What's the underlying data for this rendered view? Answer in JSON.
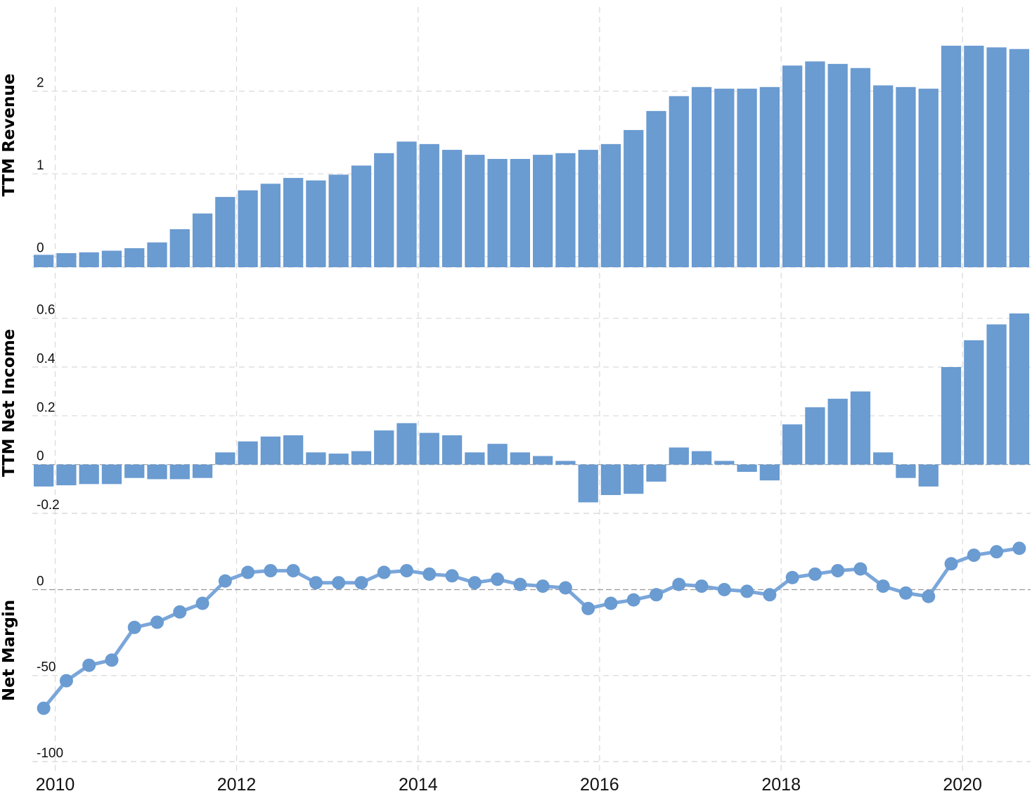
{
  "chart_data": [
    {
      "type": "bar",
      "ylabel": "TTM Revenue",
      "yticks": [
        0,
        1,
        2
      ],
      "ylim": [
        -0.13,
        2.95
      ],
      "grid": true,
      "x": [
        "2009-10",
        "2010-01",
        "2010-04",
        "2010-07",
        "2010-10",
        "2011-01",
        "2011-04",
        "2011-07",
        "2011-10",
        "2012-01",
        "2012-04",
        "2012-07",
        "2012-10",
        "2013-01",
        "2013-04",
        "2013-07",
        "2013-10",
        "2014-01",
        "2014-04",
        "2014-07",
        "2014-10",
        "2015-01",
        "2015-04",
        "2015-07",
        "2015-10",
        "2016-01",
        "2016-04",
        "2016-07",
        "2016-10",
        "2017-01",
        "2017-04",
        "2017-07",
        "2017-10",
        "2018-01",
        "2018-04",
        "2018-07",
        "2018-10",
        "2019-01",
        "2019-04",
        "2019-07",
        "2019-10",
        "2020-01",
        "2020-04",
        "2020-07"
      ],
      "values": [
        0.02,
        0.04,
        0.05,
        0.07,
        0.1,
        0.17,
        0.33,
        0.52,
        0.72,
        0.8,
        0.88,
        0.95,
        0.92,
        0.99,
        1.1,
        1.25,
        1.39,
        1.36,
        1.29,
        1.23,
        1.18,
        1.18,
        1.23,
        1.25,
        1.29,
        1.36,
        1.53,
        1.76,
        1.94,
        2.05,
        2.03,
        2.03,
        2.05,
        2.31,
        2.36,
        2.33,
        2.28,
        2.07,
        2.05,
        2.03,
        2.55,
        2.55,
        2.53,
        2.51
      ]
    },
    {
      "type": "bar",
      "ylabel": "TTM Net Income",
      "yticks": [
        0.6,
        0.4,
        0.2,
        0.0,
        -0.2
      ],
      "ylim": [
        -0.2,
        0.7
      ],
      "grid": true,
      "x": [
        "2009-10",
        "2010-01",
        "2010-04",
        "2010-07",
        "2010-10",
        "2011-01",
        "2011-04",
        "2011-07",
        "2011-10",
        "2012-01",
        "2012-04",
        "2012-07",
        "2012-10",
        "2013-01",
        "2013-04",
        "2013-07",
        "2013-10",
        "2014-01",
        "2014-04",
        "2014-07",
        "2014-10",
        "2015-01",
        "2015-04",
        "2015-07",
        "2015-10",
        "2016-01",
        "2016-04",
        "2016-07",
        "2016-10",
        "2017-01",
        "2017-04",
        "2017-07",
        "2017-10",
        "2018-01",
        "2018-04",
        "2018-07",
        "2018-10",
        "2019-01",
        "2019-04",
        "2019-07",
        "2019-10",
        "2020-01",
        "2020-04",
        "2020-07"
      ],
      "values": [
        -0.09,
        -0.085,
        -0.08,
        -0.08,
        -0.055,
        -0.06,
        -0.06,
        -0.055,
        0.05,
        0.095,
        0.115,
        0.12,
        0.05,
        0.045,
        0.055,
        0.14,
        0.17,
        0.13,
        0.12,
        0.05,
        0.085,
        0.05,
        0.035,
        0.015,
        -0.155,
        -0.125,
        -0.12,
        -0.07,
        0.07,
        0.055,
        0.015,
        -0.03,
        -0.065,
        0.165,
        0.235,
        0.27,
        0.3,
        0.05,
        -0.055,
        -0.09,
        0.4,
        0.51,
        0.575,
        0.62
      ]
    },
    {
      "type": "line",
      "ylabel": "Net Margin",
      "yticks": [
        0,
        -50,
        -100
      ],
      "ylim": [
        -100,
        28
      ],
      "grid": true,
      "markers": true,
      "x": [
        "2009-10",
        "2010-01",
        "2010-04",
        "2010-07",
        "2010-10",
        "2011-01",
        "2011-04",
        "2011-07",
        "2011-10",
        "2012-01",
        "2012-04",
        "2012-07",
        "2012-10",
        "2013-01",
        "2013-04",
        "2013-07",
        "2013-10",
        "2014-01",
        "2014-04",
        "2014-07",
        "2014-10",
        "2015-01",
        "2015-04",
        "2015-07",
        "2015-10",
        "2016-01",
        "2016-04",
        "2016-07",
        "2016-10",
        "2017-01",
        "2017-04",
        "2017-07",
        "2017-10",
        "2018-01",
        "2018-04",
        "2018-07",
        "2018-10",
        "2019-01",
        "2019-04",
        "2019-07",
        "2019-10",
        "2020-01",
        "2020-04",
        "2020-07"
      ],
      "values": [
        -69,
        -53,
        -44,
        -41,
        -22,
        -19,
        -13,
        -8,
        5,
        10,
        11,
        11,
        4,
        4,
        4,
        10,
        11,
        9,
        8,
        4,
        6,
        3,
        2,
        1,
        -11,
        -8,
        -6,
        -3,
        3,
        2,
        0,
        -1,
        -3,
        7,
        9,
        11,
        12,
        2,
        -2,
        -4,
        15,
        20,
        22,
        24
      ]
    }
  ],
  "x_axis": {
    "tick_labels": [
      "2010",
      "2012",
      "2014",
      "2016",
      "2018",
      "2020"
    ]
  },
  "colors": {
    "series": "#6a9bd1",
    "line": "#7aa6da"
  }
}
